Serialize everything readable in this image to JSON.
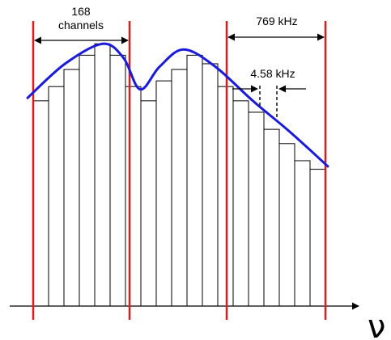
{
  "labels": {
    "channel_count": "168",
    "channel_word": "channels",
    "band_width": "769 kHz",
    "channel_width": "4.58 kHz",
    "axis_symbol": "ν"
  },
  "colors": {
    "band_edge": "#e01b1b",
    "envelope": "#1a1adc",
    "bars": "#000000",
    "axis": "#000000"
  },
  "bins": [
    {
      "value": 0.72
    },
    {
      "value": 0.77
    },
    {
      "value": 0.83
    },
    {
      "value": 0.88
    },
    {
      "value": 0.92
    },
    {
      "value": 0.88
    },
    {
      "value": 0.77
    },
    {
      "value": 0.72
    },
    {
      "value": 0.79
    },
    {
      "value": 0.83
    },
    {
      "value": 0.88
    },
    {
      "value": 0.85
    },
    {
      "value": 0.77
    },
    {
      "value": 0.72
    },
    {
      "value": 0.68
    },
    {
      "value": 0.62
    },
    {
      "value": 0.57
    },
    {
      "value": 0.51
    },
    {
      "value": 0.48
    }
  ],
  "envelope": [
    {
      "x": 0.0,
      "value": 0.73
    },
    {
      "x": 0.125,
      "value": 0.85
    },
    {
      "x": 0.25,
      "value": 0.92
    },
    {
      "x": 0.32,
      "value": 0.87
    },
    {
      "x": 0.375,
      "value": 0.76
    },
    {
      "x": 0.44,
      "value": 0.84
    },
    {
      "x": 0.52,
      "value": 0.9
    },
    {
      "x": 0.625,
      "value": 0.84
    },
    {
      "x": 0.75,
      "value": 0.72
    },
    {
      "x": 0.875,
      "value": 0.61
    },
    {
      "x": 1.0,
      "value": 0.49
    }
  ]
}
